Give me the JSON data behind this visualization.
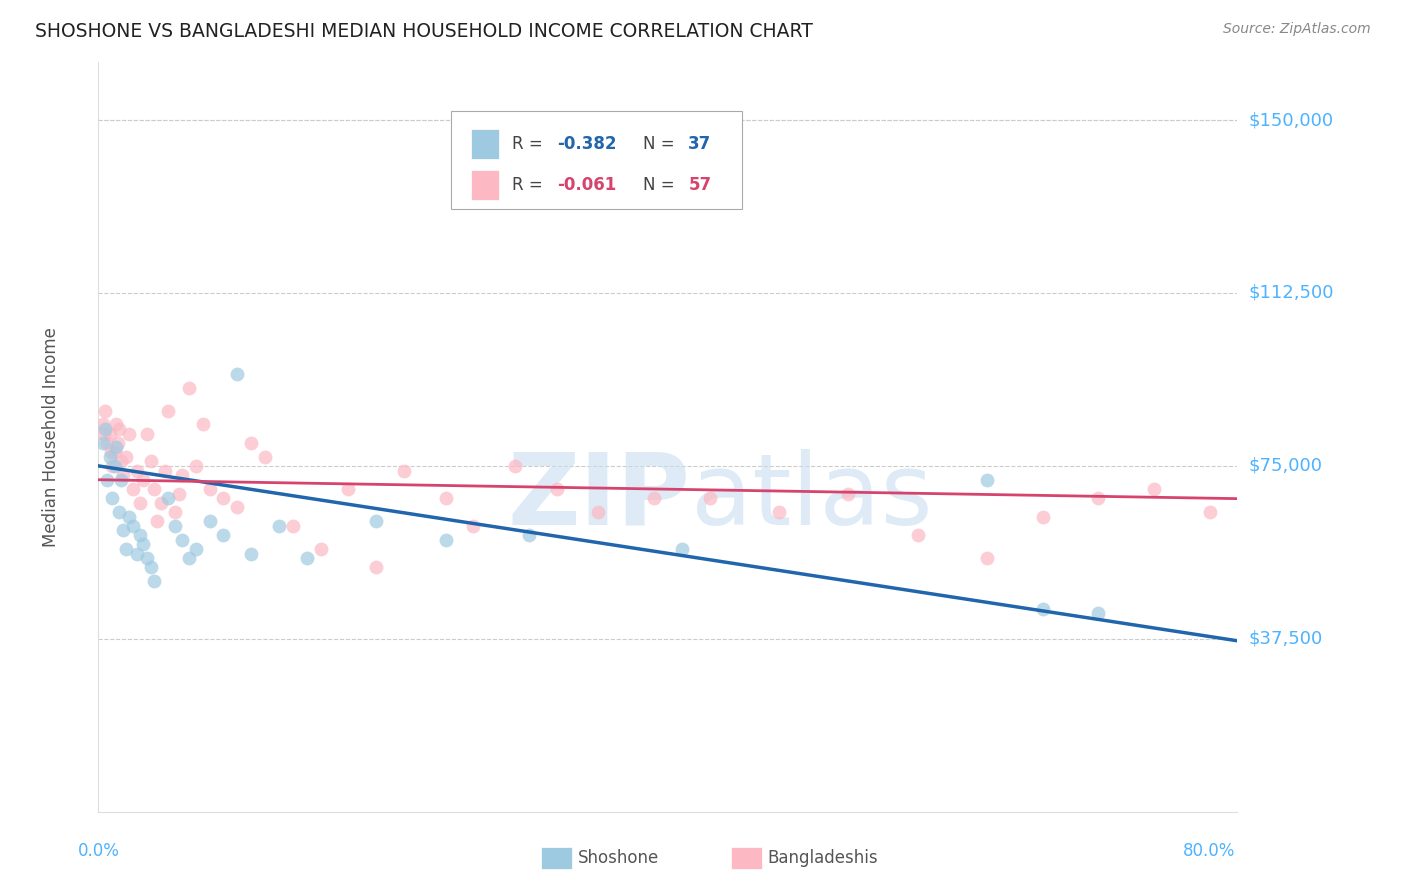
{
  "title": "SHOSHONE VS BANGLADESHI MEDIAN HOUSEHOLD INCOME CORRELATION CHART",
  "source": "Source: ZipAtlas.com",
  "ylabel": "Median Household Income",
  "watermark_zip": "ZIP",
  "watermark_atlas": "atlas",
  "xlim": [
    0.0,
    0.82
  ],
  "ylim": [
    0,
    162500
  ],
  "ytick_vals": [
    37500,
    75000,
    112500,
    150000
  ],
  "ytick_labels": [
    "$37,500",
    "$75,000",
    "$112,500",
    "$150,000"
  ],
  "legend_label_blue": "Shoshone",
  "legend_label_pink": "Bangladeshis",
  "blue_color": "#9ecae1",
  "pink_color": "#fcb8c3",
  "trendline_blue": "#2166ac",
  "trendline_pink": "#d6446e",
  "scatter_alpha": 0.7,
  "marker_size": 100,
  "blue_x": [
    0.003,
    0.005,
    0.006,
    0.008,
    0.01,
    0.012,
    0.013,
    0.015,
    0.016,
    0.018,
    0.02,
    0.022,
    0.025,
    0.028,
    0.03,
    0.032,
    0.035,
    0.038,
    0.04,
    0.05,
    0.055,
    0.06,
    0.065,
    0.07,
    0.08,
    0.09,
    0.1,
    0.11,
    0.13,
    0.15,
    0.2,
    0.25,
    0.31,
    0.42,
    0.64,
    0.68,
    0.72
  ],
  "blue_y": [
    80000,
    83000,
    72000,
    77000,
    68000,
    75000,
    79000,
    65000,
    72000,
    61000,
    57000,
    64000,
    62000,
    56000,
    60000,
    58000,
    55000,
    53000,
    50000,
    68000,
    62000,
    59000,
    55000,
    57000,
    63000,
    60000,
    95000,
    56000,
    62000,
    55000,
    63000,
    59000,
    60000,
    57000,
    72000,
    44000,
    43000
  ],
  "pink_x": [
    0.003,
    0.004,
    0.005,
    0.006,
    0.008,
    0.009,
    0.01,
    0.012,
    0.013,
    0.014,
    0.015,
    0.016,
    0.018,
    0.02,
    0.022,
    0.025,
    0.028,
    0.03,
    0.032,
    0.035,
    0.038,
    0.04,
    0.042,
    0.045,
    0.048,
    0.05,
    0.055,
    0.058,
    0.06,
    0.065,
    0.07,
    0.075,
    0.08,
    0.09,
    0.1,
    0.11,
    0.12,
    0.14,
    0.16,
    0.18,
    0.2,
    0.22,
    0.25,
    0.27,
    0.3,
    0.33,
    0.36,
    0.4,
    0.44,
    0.49,
    0.54,
    0.59,
    0.64,
    0.68,
    0.72,
    0.76,
    0.8
  ],
  "pink_y": [
    84000,
    82000,
    87000,
    80000,
    82000,
    78000,
    75000,
    78000,
    84000,
    80000,
    83000,
    76000,
    73000,
    77000,
    82000,
    70000,
    74000,
    67000,
    72000,
    82000,
    76000,
    70000,
    63000,
    67000,
    74000,
    87000,
    65000,
    69000,
    73000,
    92000,
    75000,
    84000,
    70000,
    68000,
    66000,
    80000,
    77000,
    62000,
    57000,
    70000,
    53000,
    74000,
    68000,
    62000,
    75000,
    70000,
    65000,
    68000,
    68000,
    65000,
    69000,
    60000,
    55000,
    64000,
    68000,
    70000,
    65000
  ],
  "background_color": "#ffffff",
  "grid_color": "#cccccc",
  "title_color": "#222222",
  "axis_label_color": "#555555",
  "tick_label_color": "#4db3ff",
  "source_color": "#888888"
}
